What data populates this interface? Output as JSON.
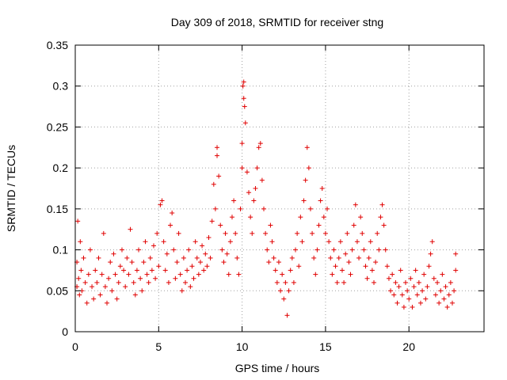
{
  "chart_data": {
    "type": "scatter",
    "title": "Day 309 of 2018, SRMTID for receiver stng",
    "xlabel": "GPS time / hours",
    "ylabel": "SRMTID / TECUs",
    "xlim": [
      0,
      24.5
    ],
    "ylim": [
      0,
      0.35
    ],
    "xticks": [
      0,
      5,
      10,
      15,
      20
    ],
    "xtick_labels": [
      "0",
      "5",
      "10",
      "15",
      "20"
    ],
    "yticks": [
      0,
      0.05,
      0.1,
      0.15,
      0.2,
      0.25,
      0.3,
      0.35
    ],
    "ytick_labels": [
      "0",
      "0.05",
      "0.1",
      "0.15",
      "0.2",
      "0.25",
      "0.3",
      "0.35"
    ],
    "grid": true,
    "marker": "+",
    "series": [
      {
        "name": "SRMTID",
        "color": "#e00000",
        "points": [
          [
            0.1,
            0.055
          ],
          [
            0.1,
            0.085
          ],
          [
            0.15,
            0.135
          ],
          [
            0.2,
            0.065
          ],
          [
            0.25,
            0.045
          ],
          [
            0.3,
            0.11
          ],
          [
            0.35,
            0.075
          ],
          [
            0.4,
            0.05
          ],
          [
            0.5,
            0.09
          ],
          [
            0.6,
            0.06
          ],
          [
            0.7,
            0.035
          ],
          [
            0.8,
            0.07
          ],
          [
            0.9,
            0.1
          ],
          [
            1.0,
            0.055
          ],
          [
            1.1,
            0.04
          ],
          [
            1.2,
            0.075
          ],
          [
            1.3,
            0.06
          ],
          [
            1.4,
            0.09
          ],
          [
            1.5,
            0.045
          ],
          [
            1.6,
            0.07
          ],
          [
            1.7,
            0.12
          ],
          [
            1.8,
            0.055
          ],
          [
            1.9,
            0.035
          ],
          [
            2.0,
            0.065
          ],
          [
            2.1,
            0.085
          ],
          [
            2.2,
            0.05
          ],
          [
            2.3,
            0.095
          ],
          [
            2.4,
            0.07
          ],
          [
            2.5,
            0.04
          ],
          [
            2.6,
            0.06
          ],
          [
            2.7,
            0.08
          ],
          [
            2.8,
            0.1
          ],
          [
            2.9,
            0.075
          ],
          [
            3.0,
            0.055
          ],
          [
            3.1,
            0.09
          ],
          [
            3.2,
            0.07
          ],
          [
            3.3,
            0.125
          ],
          [
            3.4,
            0.085
          ],
          [
            3.5,
            0.06
          ],
          [
            3.6,
            0.045
          ],
          [
            3.7,
            0.075
          ],
          [
            3.8,
            0.1
          ],
          [
            3.9,
            0.065
          ],
          [
            4.0,
            0.05
          ],
          [
            4.1,
            0.085
          ],
          [
            4.2,
            0.11
          ],
          [
            4.3,
            0.07
          ],
          [
            4.4,
            0.06
          ],
          [
            4.5,
            0.09
          ],
          [
            4.6,
            0.075
          ],
          [
            4.7,
            0.105
          ],
          [
            4.8,
            0.065
          ],
          [
            4.9,
            0.12
          ],
          [
            5.0,
            0.08
          ],
          [
            5.1,
            0.155
          ],
          [
            5.2,
            0.16
          ],
          [
            5.3,
            0.11
          ],
          [
            5.4,
            0.075
          ],
          [
            5.5,
            0.095
          ],
          [
            5.6,
            0.06
          ],
          [
            5.7,
            0.13
          ],
          [
            5.8,
            0.145
          ],
          [
            5.9,
            0.1
          ],
          [
            6.0,
            0.065
          ],
          [
            6.1,
            0.085
          ],
          [
            6.2,
            0.12
          ],
          [
            6.3,
            0.07
          ],
          [
            6.4,
            0.05
          ],
          [
            6.5,
            0.09
          ],
          [
            6.6,
            0.06
          ],
          [
            6.7,
            0.075
          ],
          [
            6.8,
            0.1
          ],
          [
            6.9,
            0.055
          ],
          [
            7.0,
            0.08
          ],
          [
            7.1,
            0.065
          ],
          [
            7.2,
            0.11
          ],
          [
            7.3,
            0.09
          ],
          [
            7.4,
            0.07
          ],
          [
            7.5,
            0.085
          ],
          [
            7.6,
            0.105
          ],
          [
            7.7,
            0.075
          ],
          [
            7.8,
            0.095
          ],
          [
            7.9,
            0.08
          ],
          [
            8.0,
            0.115
          ],
          [
            8.1,
            0.09
          ],
          [
            8.2,
            0.135
          ],
          [
            8.3,
            0.18
          ],
          [
            8.4,
            0.15
          ],
          [
            8.5,
            0.225
          ],
          [
            8.5,
            0.215
          ],
          [
            8.6,
            0.19
          ],
          [
            8.7,
            0.13
          ],
          [
            8.8,
            0.1
          ],
          [
            8.9,
            0.085
          ],
          [
            9.0,
            0.12
          ],
          [
            9.1,
            0.095
          ],
          [
            9.2,
            0.07
          ],
          [
            9.3,
            0.11
          ],
          [
            9.4,
            0.14
          ],
          [
            9.5,
            0.16
          ],
          [
            9.6,
            0.12
          ],
          [
            9.7,
            0.09
          ],
          [
            9.8,
            0.07
          ],
          [
            9.9,
            0.15
          ],
          [
            10.0,
            0.2
          ],
          [
            10.0,
            0.23
          ],
          [
            10.05,
            0.3
          ],
          [
            10.1,
            0.305
          ],
          [
            10.1,
            0.285
          ],
          [
            10.15,
            0.275
          ],
          [
            10.2,
            0.255
          ],
          [
            10.3,
            0.195
          ],
          [
            10.4,
            0.17
          ],
          [
            10.5,
            0.14
          ],
          [
            10.6,
            0.12
          ],
          [
            10.7,
            0.16
          ],
          [
            10.8,
            0.175
          ],
          [
            10.9,
            0.2
          ],
          [
            11.0,
            0.225
          ],
          [
            11.1,
            0.23
          ],
          [
            11.2,
            0.185
          ],
          [
            11.3,
            0.15
          ],
          [
            11.4,
            0.12
          ],
          [
            11.5,
            0.1
          ],
          [
            11.6,
            0.085
          ],
          [
            11.7,
            0.13
          ],
          [
            11.8,
            0.11
          ],
          [
            11.9,
            0.09
          ],
          [
            12.0,
            0.075
          ],
          [
            12.1,
            0.06
          ],
          [
            12.2,
            0.085
          ],
          [
            12.3,
            0.05
          ],
          [
            12.4,
            0.07
          ],
          [
            12.5,
            0.04
          ],
          [
            12.6,
            0.06
          ],
          [
            12.7,
            0.02
          ],
          [
            12.8,
            0.05
          ],
          [
            12.9,
            0.075
          ],
          [
            13.0,
            0.09
          ],
          [
            13.1,
            0.06
          ],
          [
            13.2,
            0.1
          ],
          [
            13.3,
            0.12
          ],
          [
            13.4,
            0.08
          ],
          [
            13.5,
            0.14
          ],
          [
            13.6,
            0.11
          ],
          [
            13.7,
            0.16
          ],
          [
            13.8,
            0.185
          ],
          [
            13.9,
            0.225
          ],
          [
            14.0,
            0.2
          ],
          [
            14.1,
            0.15
          ],
          [
            14.2,
            0.12
          ],
          [
            14.3,
            0.09
          ],
          [
            14.4,
            0.07
          ],
          [
            14.5,
            0.1
          ],
          [
            14.6,
            0.13
          ],
          [
            14.7,
            0.16
          ],
          [
            14.8,
            0.175
          ],
          [
            14.9,
            0.14
          ],
          [
            15.0,
            0.12
          ],
          [
            15.1,
            0.15
          ],
          [
            15.2,
            0.11
          ],
          [
            15.3,
            0.09
          ],
          [
            15.4,
            0.07
          ],
          [
            15.5,
            0.1
          ],
          [
            15.6,
            0.08
          ],
          [
            15.7,
            0.06
          ],
          [
            15.8,
            0.09
          ],
          [
            15.9,
            0.11
          ],
          [
            16.0,
            0.075
          ],
          [
            16.1,
            0.06
          ],
          [
            16.2,
            0.095
          ],
          [
            16.3,
            0.12
          ],
          [
            16.4,
            0.085
          ],
          [
            16.5,
            0.07
          ],
          [
            16.6,
            0.1
          ],
          [
            16.7,
            0.13
          ],
          [
            16.8,
            0.155
          ],
          [
            16.9,
            0.11
          ],
          [
            17.0,
            0.09
          ],
          [
            17.1,
            0.14
          ],
          [
            17.2,
            0.12
          ],
          [
            17.3,
            0.1
          ],
          [
            17.4,
            0.08
          ],
          [
            17.5,
            0.065
          ],
          [
            17.6,
            0.09
          ],
          [
            17.7,
            0.11
          ],
          [
            17.8,
            0.075
          ],
          [
            17.9,
            0.06
          ],
          [
            18.0,
            0.085
          ],
          [
            18.1,
            0.12
          ],
          [
            18.2,
            0.1
          ],
          [
            18.3,
            0.14
          ],
          [
            18.4,
            0.155
          ],
          [
            18.5,
            0.13
          ],
          [
            18.6,
            0.1
          ],
          [
            18.7,
            0.08
          ],
          [
            18.8,
            0.065
          ],
          [
            18.9,
            0.05
          ],
          [
            19.0,
            0.07
          ],
          [
            19.1,
            0.045
          ],
          [
            19.2,
            0.06
          ],
          [
            19.3,
            0.035
          ],
          [
            19.4,
            0.055
          ],
          [
            19.5,
            0.075
          ],
          [
            19.6,
            0.045
          ],
          [
            19.7,
            0.03
          ],
          [
            19.8,
            0.06
          ],
          [
            19.9,
            0.05
          ],
          [
            20.0,
            0.04
          ],
          [
            20.1,
            0.065
          ],
          [
            20.2,
            0.03
          ],
          [
            20.3,
            0.055
          ],
          [
            20.4,
            0.075
          ],
          [
            20.5,
            0.045
          ],
          [
            20.6,
            0.06
          ],
          [
            20.7,
            0.035
          ],
          [
            20.8,
            0.05
          ],
          [
            20.9,
            0.07
          ],
          [
            21.0,
            0.04
          ],
          [
            21.1,
            0.055
          ],
          [
            21.2,
            0.08
          ],
          [
            21.3,
            0.095
          ],
          [
            21.4,
            0.11
          ],
          [
            21.5,
            0.065
          ],
          [
            21.6,
            0.045
          ],
          [
            21.7,
            0.06
          ],
          [
            21.8,
            0.035
          ],
          [
            21.9,
            0.05
          ],
          [
            22.0,
            0.07
          ],
          [
            22.1,
            0.04
          ],
          [
            22.2,
            0.055
          ],
          [
            22.3,
            0.03
          ],
          [
            22.4,
            0.045
          ],
          [
            22.5,
            0.06
          ],
          [
            22.6,
            0.035
          ],
          [
            22.7,
            0.05
          ],
          [
            22.8,
            0.095
          ],
          [
            22.8,
            0.075
          ]
        ]
      }
    ]
  }
}
